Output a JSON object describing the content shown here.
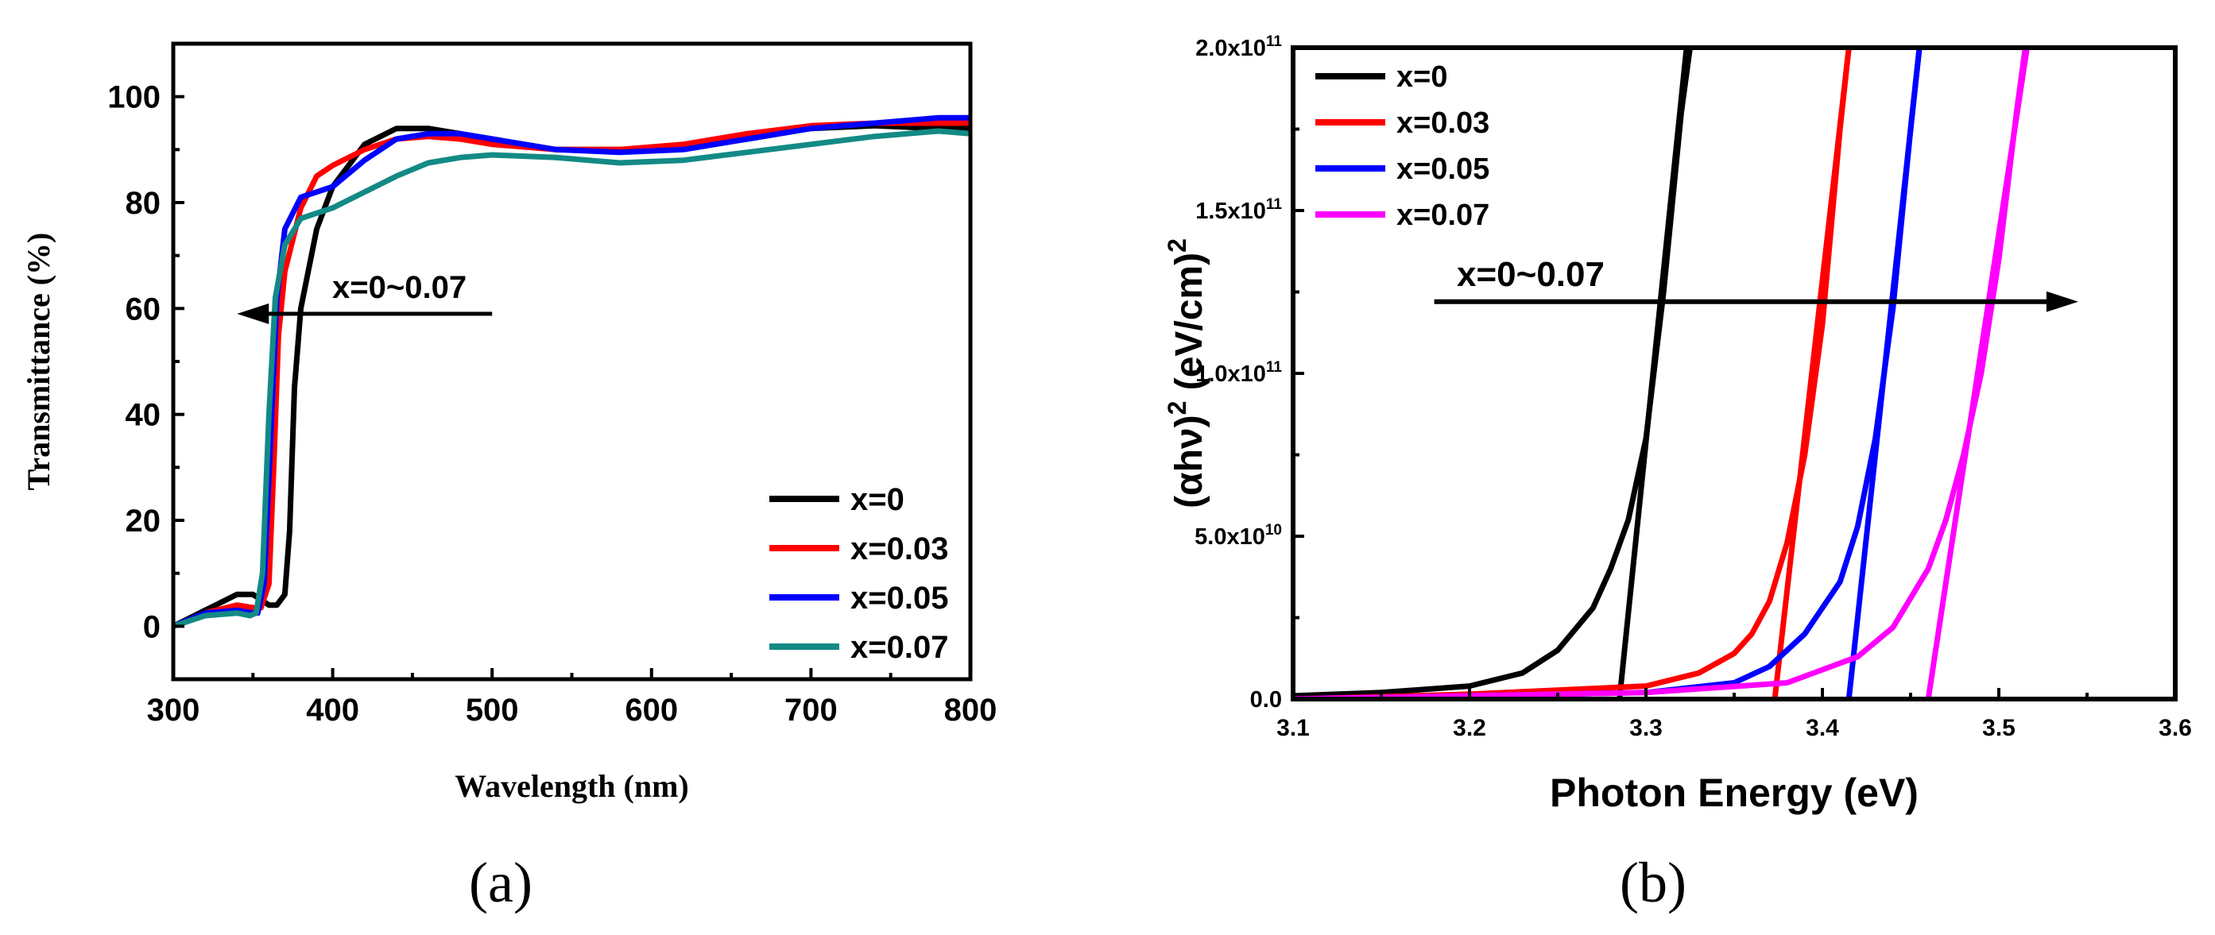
{
  "chart_data": [
    {
      "type": "line",
      "panel_label": "(a)",
      "xlabel": "Wavelength (nm)",
      "ylabel": "Transmittance (%)",
      "xlim": [
        300,
        800
      ],
      "ylim": [
        -10,
        110
      ],
      "xticks": [
        300,
        400,
        500,
        600,
        700,
        800
      ],
      "yticks": [
        0,
        20,
        40,
        60,
        80,
        100
      ],
      "legend_position": "bottom-right",
      "annotation": {
        "text": "x=0~0.07",
        "arrow_from": [
          500,
          59
        ],
        "arrow_to": [
          340,
          59
        ]
      },
      "series": [
        {
          "name": "x=0",
          "color": "#000000",
          "x": [
            300,
            320,
            340,
            350,
            355,
            360,
            365,
            370,
            373,
            376,
            380,
            390,
            400,
            420,
            440,
            460,
            480,
            500,
            540,
            580,
            620,
            660,
            700,
            740,
            780,
            800
          ],
          "y": [
            0,
            3,
            6,
            6,
            5,
            4,
            4,
            6,
            18,
            45,
            60,
            75,
            83,
            91,
            94,
            94,
            93,
            92,
            90,
            90,
            90.5,
            92,
            94,
            94.5,
            94,
            94
          ]
        },
        {
          "name": "x=0.03",
          "color": "#ff0000",
          "x": [
            300,
            320,
            340,
            350,
            355,
            360,
            363,
            366,
            370,
            380,
            390,
            400,
            420,
            440,
            460,
            480,
            500,
            540,
            580,
            620,
            660,
            700,
            740,
            780,
            800
          ],
          "y": [
            0,
            2.5,
            4,
            3.5,
            3.5,
            8,
            30,
            55,
            67,
            79,
            85,
            87,
            90,
            92,
            92.5,
            92,
            91,
            90,
            90,
            91,
            93,
            94.5,
            95,
            95,
            95
          ]
        },
        {
          "name": "x=0.05",
          "color": "#0000ff",
          "x": [
            300,
            320,
            340,
            350,
            353,
            357,
            361,
            365,
            370,
            380,
            390,
            400,
            420,
            440,
            460,
            480,
            500,
            540,
            580,
            620,
            660,
            700,
            740,
            780,
            800
          ],
          "y": [
            0,
            2.5,
            3,
            2.5,
            2.5,
            8,
            35,
            62,
            75,
            81,
            82,
            83,
            88,
            92,
            93,
            93,
            92,
            90,
            89.5,
            90,
            92,
            94,
            95,
            96,
            96
          ]
        },
        {
          "name": "x=0.07",
          "color": "#138a85",
          "x": [
            300,
            320,
            340,
            348,
            352,
            356,
            360,
            364,
            370,
            380,
            390,
            400,
            420,
            440,
            460,
            480,
            500,
            540,
            580,
            620,
            660,
            700,
            740,
            780,
            800
          ],
          "y": [
            0,
            2,
            2.5,
            2,
            2.5,
            10,
            40,
            62,
            72,
            77,
            78,
            79,
            82,
            85,
            87.5,
            88.5,
            89,
            88.5,
            87.5,
            88,
            89.5,
            91,
            92.5,
            93.5,
            93
          ]
        }
      ]
    },
    {
      "type": "line",
      "panel_label": "(b)",
      "xlabel": "Photon Energy (eV)",
      "ylabel_main": "(αhν)",
      "ylabel_sup1": "2",
      "ylabel_rest": " (eV/cm)",
      "ylabel_sup2": "2",
      "xlim": [
        3.1,
        3.6
      ],
      "ylim": [
        0,
        200000000000.0
      ],
      "xticks": [
        3.1,
        3.2,
        3.3,
        3.4,
        3.5,
        3.6
      ],
      "ytick_labels": [
        {
          "v": 0,
          "mant": "0.0",
          "exp": ""
        },
        {
          "v": 50000000000.0,
          "mant": "5.0x10",
          "exp": "10"
        },
        {
          "v": 100000000000.0,
          "mant": "1.0x10",
          "exp": "11"
        },
        {
          "v": 150000000000.0,
          "mant": "1.5x10",
          "exp": "11"
        },
        {
          "v": 200000000000.0,
          "mant": "2.0x10",
          "exp": "11"
        }
      ],
      "legend_position": "top-left",
      "annotation": {
        "text": "x=0~0.07",
        "arrow_from": [
          3.18,
          122000000000.0
        ],
        "arrow_to": [
          3.545,
          122000000000.0
        ]
      },
      "series": [
        {
          "name": "x=0",
          "color": "#000000",
          "x": [
            3.1,
            3.15,
            3.2,
            3.23,
            3.25,
            3.27,
            3.28,
            3.29,
            3.3,
            3.31,
            3.32,
            3.325
          ],
          "y": [
            1000000000.0,
            2000000000.0,
            4000000000.0,
            8000000000.0,
            15000000000.0,
            28000000000.0,
            40000000000.0,
            55000000000.0,
            80000000000.0,
            125000000000.0,
            180000000000.0,
            200000000000.0
          ],
          "tangent": [
            [
              3.285,
              0
            ],
            [
              3.323,
              200000000000.0
            ]
          ]
        },
        {
          "name": "x=0.03",
          "color": "#ff0000",
          "x": [
            3.1,
            3.2,
            3.3,
            3.33,
            3.35,
            3.36,
            3.37,
            3.38,
            3.39,
            3.4,
            3.41,
            3.415
          ],
          "y": [
            0,
            1500000000.0,
            4000000000.0,
            8000000000.0,
            14000000000.0,
            20000000000.0,
            30000000000.0,
            48000000000.0,
            75000000000.0,
            115000000000.0,
            175000000000.0,
            200000000000.0
          ],
          "tangent": [
            [
              3.373,
              0
            ],
            [
              3.415,
              200000000000.0
            ]
          ]
        },
        {
          "name": "x=0.05",
          "color": "#0000ff",
          "x": [
            3.1,
            3.2,
            3.3,
            3.35,
            3.37,
            3.39,
            3.41,
            3.42,
            3.43,
            3.44,
            3.45,
            3.455
          ],
          "y": [
            0,
            1000000000.0,
            2000000000.0,
            5000000000.0,
            10000000000.0,
            20000000000.0,
            36000000000.0,
            53000000000.0,
            80000000000.0,
            120000000000.0,
            175000000000.0,
            200000000000.0
          ],
          "tangent": [
            [
              3.415,
              0
            ],
            [
              3.455,
              200000000000.0
            ]
          ]
        },
        {
          "name": "x=0.07",
          "color": "#ff00ff",
          "x": [
            3.1,
            3.2,
            3.3,
            3.38,
            3.42,
            3.44,
            3.46,
            3.47,
            3.48,
            3.49,
            3.5,
            3.51,
            3.515
          ],
          "y": [
            0,
            1000000000.0,
            2000000000.0,
            5000000000.0,
            13000000000.0,
            22000000000.0,
            40000000000.0,
            55000000000.0,
            75000000000.0,
            100000000000.0,
            135000000000.0,
            180000000000.0,
            200000000000.0
          ],
          "tangent": [
            [
              3.46,
              0
            ],
            [
              3.516,
              200000000000.0
            ]
          ]
        }
      ]
    }
  ]
}
